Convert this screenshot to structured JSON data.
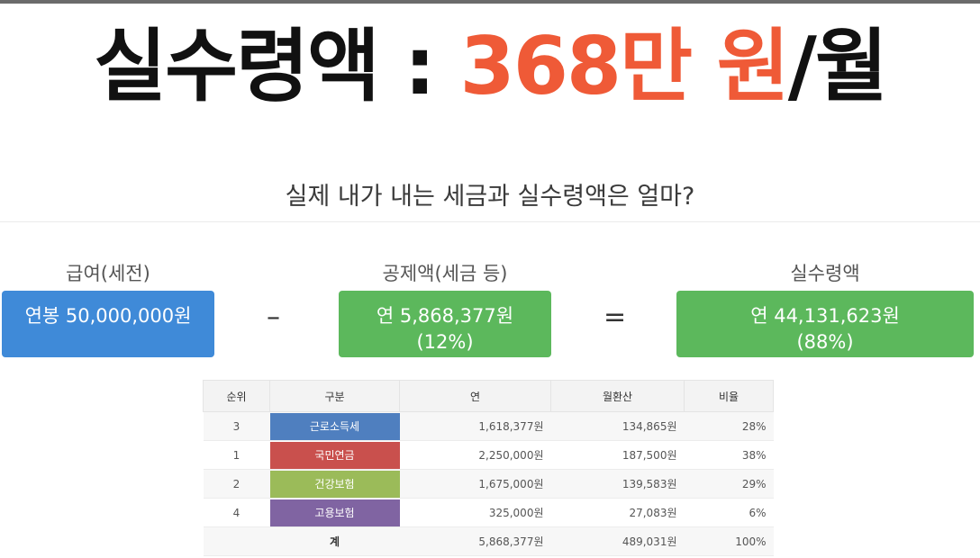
{
  "headline": {
    "prefix": "실수령액 : ",
    "amount": "368만 원",
    "suffix": "/월"
  },
  "subtitle": "실제 내가 내는 세금과 실수령액은 얼마?",
  "colors": {
    "accent_red": "#ef5a37",
    "blue": "#3f8ad8",
    "green": "#5cb85c"
  },
  "summary": {
    "gross": {
      "label": "급여(세전)",
      "line1": "연봉 50,000,000원"
    },
    "deduction": {
      "label": "공제액(세금 등)",
      "line1": "연 5,868,377원",
      "line2": "(12%)"
    },
    "net": {
      "label": "실수령액",
      "line1": "연 44,131,623원",
      "line2": "(88%)"
    },
    "minus": "–",
    "equals": "="
  },
  "table": {
    "headers": [
      "순위",
      "구분",
      "연",
      "월환산",
      "비율"
    ],
    "rows": [
      {
        "rank": "3",
        "category": "근로소득세",
        "color": "#4f7fbf",
        "annual": "1,618,377원",
        "monthly": "134,865원",
        "ratio": "28%"
      },
      {
        "rank": "1",
        "category": "국민연금",
        "color": "#c9504d",
        "annual": "2,250,000원",
        "monthly": "187,500원",
        "ratio": "38%"
      },
      {
        "rank": "2",
        "category": "건강보험",
        "color": "#9bbb59",
        "annual": "1,675,000원",
        "monthly": "139,583원",
        "ratio": "29%"
      },
      {
        "rank": "4",
        "category": "고용보험",
        "color": "#8064a2",
        "annual": "325,000원",
        "monthly": "27,083원",
        "ratio": "6%"
      }
    ],
    "total": {
      "label": "계",
      "annual": "5,868,377원",
      "monthly": "489,031원",
      "ratio": "100%"
    }
  }
}
